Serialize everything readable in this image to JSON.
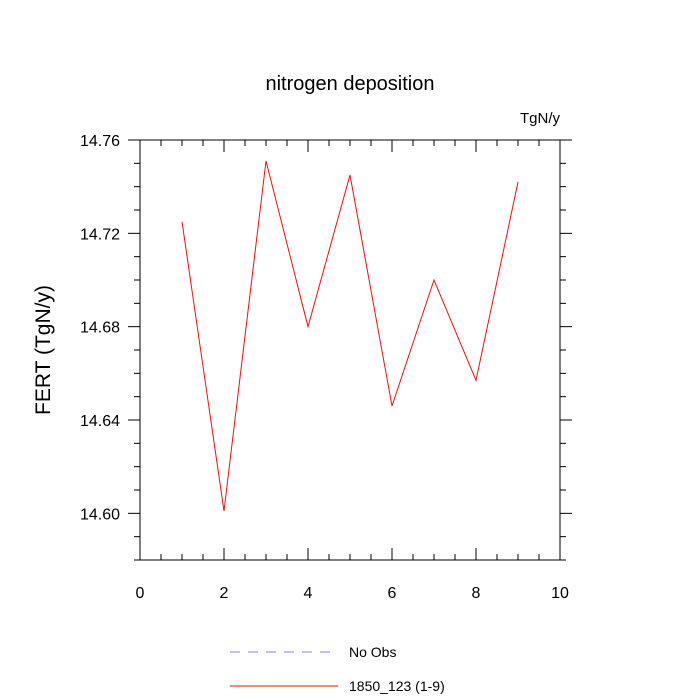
{
  "chart_data": {
    "type": "line",
    "title": "nitrogen deposition",
    "units_label": "TgN/y",
    "ylabel": "FERT  (TgN/y)",
    "xlabel": "",
    "xlim": [
      0,
      10
    ],
    "ylim": [
      14.58,
      14.76
    ],
    "x_ticks": [
      0,
      2,
      4,
      6,
      8,
      10
    ],
    "x_tick_labels": [
      "0",
      "2",
      "4",
      "6",
      "8",
      "10"
    ],
    "y_ticks": [
      14.6,
      14.64,
      14.68,
      14.72,
      14.76
    ],
    "y_tick_labels": [
      "14.60",
      "14.64",
      "14.68",
      "14.72",
      "14.76"
    ],
    "grid": false,
    "legend_position": "bottom",
    "series": [
      {
        "name": "1850_123 (1-9)",
        "color": "#ee1111",
        "style": "solid",
        "x": [
          1,
          2,
          3,
          4,
          5,
          6,
          7,
          8,
          9
        ],
        "y": [
          14.725,
          14.601,
          14.751,
          14.68,
          14.745,
          14.646,
          14.7,
          14.657,
          14.742
        ]
      }
    ],
    "legend": [
      {
        "label": "No Obs",
        "color": "#8080ff",
        "style": "dashed"
      },
      {
        "label": "1850_123 (1-9)",
        "color": "#ee1111",
        "style": "solid"
      }
    ]
  }
}
